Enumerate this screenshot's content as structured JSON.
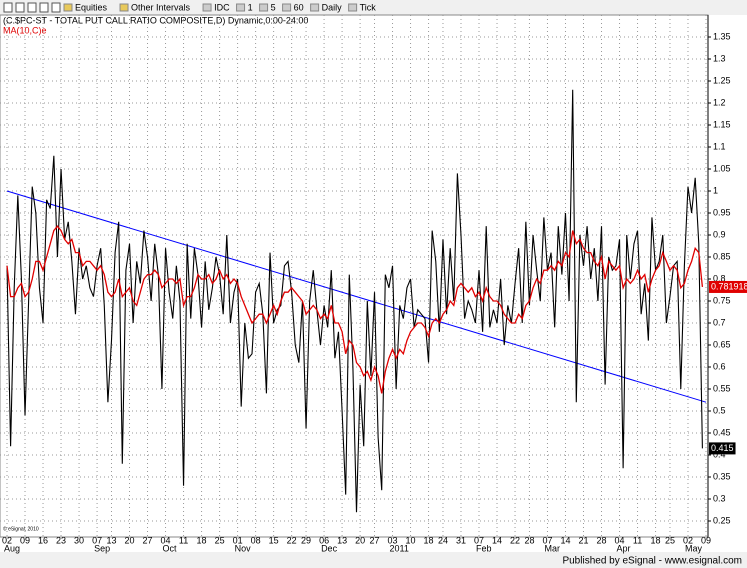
{
  "chart_data": {
    "type": "line",
    "toolbar": [
      "Equities",
      "Other Intervals",
      "IDC",
      "1",
      "5",
      "60",
      "Daily",
      "Tick"
    ],
    "watermark": "© eSignal, 2010",
    "footer": "Published by eSignal - www.esignal.com",
    "categories": [
      "02",
      null,
      null,
      null,
      null,
      "09",
      null,
      null,
      null,
      null,
      "16",
      null,
      null,
      null,
      null,
      "23",
      null,
      null,
      null,
      null,
      "30",
      null,
      null,
      null,
      null,
      "07",
      null,
      null,
      null,
      "13",
      null,
      null,
      null,
      null,
      "20",
      null,
      null,
      null,
      null,
      "27",
      null,
      null,
      null,
      null,
      "04",
      null,
      null,
      null,
      null,
      "11",
      null,
      null,
      null,
      null,
      "18",
      null,
      null,
      null,
      null,
      "25",
      null,
      null,
      null,
      null,
      "01",
      null,
      null,
      null,
      null,
      "08",
      null,
      null,
      null,
      null,
      "15",
      null,
      null,
      null,
      null,
      "22",
      null,
      null,
      null,
      "29",
      null,
      null,
      null,
      null,
      "06",
      null,
      null,
      null,
      null,
      "13",
      null,
      null,
      null,
      null,
      "20",
      null,
      null,
      null,
      "27",
      null,
      null,
      null,
      null,
      "03",
      null,
      null,
      null,
      null,
      "10",
      null,
      null,
      null,
      null,
      "18",
      null,
      null,
      null,
      "24",
      null,
      null,
      null,
      null,
      "31",
      null,
      null,
      null,
      null,
      "07",
      null,
      null,
      null,
      null,
      "14",
      null,
      null,
      null,
      null,
      "22",
      null,
      null,
      null,
      "28",
      null,
      null,
      null,
      null,
      "07",
      null,
      null,
      null,
      null,
      "14",
      null,
      null,
      null,
      null,
      "21",
      null,
      null,
      null,
      null,
      "28",
      null,
      null,
      null,
      null,
      "04",
      null,
      null,
      null,
      null,
      "11",
      null,
      null,
      null,
      null,
      "18",
      null,
      null,
      null,
      "25",
      null,
      null,
      null,
      null,
      "02",
      null,
      null,
      null,
      null,
      "09"
    ],
    "months": [
      "Aug",
      null,
      null,
      null,
      null,
      null,
      null,
      null,
      null,
      null,
      null,
      null,
      null,
      null,
      null,
      null,
      null,
      null,
      null,
      null,
      null,
      null,
      null,
      null,
      null,
      "Sep",
      null,
      null,
      null,
      null,
      null,
      null,
      null,
      null,
      null,
      null,
      null,
      null,
      null,
      null,
      null,
      null,
      null,
      null,
      "Oct",
      null,
      null,
      null,
      null,
      null,
      null,
      null,
      null,
      null,
      null,
      null,
      null,
      null,
      null,
      null,
      null,
      null,
      null,
      null,
      "Nov",
      null,
      null,
      null,
      null,
      null,
      null,
      null,
      null,
      null,
      null,
      null,
      null,
      null,
      null,
      null,
      null,
      null,
      null,
      null,
      null,
      null,
      null,
      null,
      "Dec",
      null,
      null,
      null,
      null,
      null,
      null,
      null,
      null,
      null,
      null,
      null,
      null,
      null,
      null,
      null,
      null,
      null,
      null,
      "2011",
      null,
      null,
      null,
      null,
      null,
      null,
      null,
      null,
      null,
      null,
      null,
      null,
      null,
      null,
      null,
      null,
      null,
      null,
      null,
      null,
      null,
      null,
      null,
      "Feb",
      null,
      null,
      null,
      null,
      null,
      null,
      null,
      null,
      null,
      null,
      null,
      null,
      null,
      null,
      null,
      null,
      null,
      null,
      "Mar",
      null,
      null,
      null,
      null,
      null,
      null,
      null,
      null,
      null,
      null,
      null,
      null,
      null,
      null,
      null,
      null,
      null,
      null,
      null,
      "Apr",
      null,
      null,
      null,
      null,
      null,
      null,
      null,
      null,
      null,
      null,
      null,
      null,
      null,
      null,
      null,
      null,
      null,
      null,
      "May",
      null,
      null,
      null,
      null,
      null
    ],
    "series": [
      {
        "name": "(C.$PC-ST - TOTAL PUT CALL RATIO COMPOSITE,D) Dynamic,0:00-24:00",
        "color": "#000000",
        "values": [
          0.83,
          0.42,
          0.78,
          0.99,
          0.8,
          0.49,
          0.75,
          1.01,
          0.95,
          0.78,
          0.7,
          0.98,
          0.96,
          1.08,
          0.85,
          1.05,
          0.89,
          0.93,
          0.84,
          0.72,
          0.87,
          0.8,
          0.83,
          0.78,
          0.76,
          0.83,
          0.87,
          0.74,
          0.52,
          0.66,
          0.86,
          0.93,
          0.38,
          0.82,
          0.88,
          0.7,
          0.84,
          0.79,
          0.91,
          0.85,
          0.75,
          0.88,
          0.81,
          0.55,
          0.87,
          0.77,
          0.71,
          0.83,
          0.75,
          0.33,
          0.88,
          0.71,
          0.87,
          0.81,
          0.69,
          0.84,
          0.73,
          0.78,
          0.85,
          0.81,
          0.72,
          0.9,
          0.7,
          0.77,
          0.8,
          0.51,
          0.7,
          0.62,
          0.63,
          0.77,
          0.79,
          0.72,
          0.54,
          0.86,
          0.7,
          0.73,
          0.74,
          0.83,
          0.84,
          0.77,
          0.65,
          0.61,
          0.75,
          0.46,
          0.75,
          0.82,
          0.73,
          0.65,
          0.74,
          0.69,
          0.82,
          0.62,
          0.68,
          0.5,
          0.31,
          0.81,
          0.6,
          0.27,
          0.56,
          0.42,
          0.75,
          0.58,
          0.77,
          0.44,
          0.32,
          0.81,
          0.78,
          0.83,
          0.55,
          0.74,
          0.71,
          0.78,
          0.8,
          0.69,
          0.73,
          0.72,
          0.71,
          0.61,
          0.91,
          0.84,
          0.68,
          0.89,
          0.72,
          0.87,
          0.75,
          1.04,
          0.9,
          0.71,
          0.75,
          0.73,
          0.7,
          0.82,
          0.68,
          0.92,
          0.69,
          0.73,
          0.7,
          0.8,
          0.65,
          0.74,
          0.7,
          0.79,
          0.87,
          0.7,
          0.93,
          0.74,
          0.9,
          0.82,
          0.75,
          0.94,
          0.82,
          0.86,
          0.69,
          0.92,
          0.81,
          0.95,
          0.75,
          1.23,
          0.52,
          0.9,
          0.83,
          0.92,
          0.8,
          0.87,
          0.75,
          0.92,
          0.56,
          0.85,
          0.82,
          0.83,
          0.89,
          0.37,
          0.9,
          0.8,
          0.88,
          0.91,
          0.72,
          0.79,
          0.66,
          0.94,
          0.82,
          0.84,
          0.9,
          0.7,
          0.76,
          0.83,
          0.84,
          0.55,
          0.83,
          1.01,
          0.95,
          1.03,
          0.88,
          0.415,
          null
        ]
      },
      {
        "name": "MA(10,C)e",
        "color": "#e00000",
        "values": [
          0.83,
          0.76,
          0.76,
          0.78,
          0.79,
          0.76,
          0.77,
          0.8,
          0.84,
          0.84,
          0.82,
          0.85,
          0.88,
          0.91,
          0.92,
          0.91,
          0.89,
          0.88,
          0.89,
          0.86,
          0.86,
          0.83,
          0.84,
          0.84,
          0.83,
          0.82,
          0.83,
          0.81,
          0.77,
          0.76,
          0.77,
          0.8,
          0.76,
          0.77,
          0.78,
          0.75,
          0.74,
          0.77,
          0.8,
          0.81,
          0.81,
          0.82,
          0.81,
          0.78,
          0.79,
          0.8,
          0.8,
          0.79,
          0.8,
          0.74,
          0.76,
          0.76,
          0.78,
          0.81,
          0.8,
          0.8,
          0.81,
          0.79,
          0.8,
          0.82,
          0.8,
          0.81,
          0.79,
          0.8,
          0.79,
          0.76,
          0.74,
          0.72,
          0.7,
          0.71,
          0.72,
          0.72,
          0.7,
          0.72,
          0.74,
          0.72,
          0.75,
          0.77,
          0.77,
          0.78,
          0.77,
          0.76,
          0.75,
          0.72,
          0.73,
          0.74,
          0.73,
          0.71,
          0.72,
          0.71,
          0.74,
          0.7,
          0.7,
          0.68,
          0.63,
          0.66,
          0.65,
          0.61,
          0.6,
          0.58,
          0.59,
          0.57,
          0.6,
          0.58,
          0.54,
          0.59,
          0.62,
          0.64,
          0.62,
          0.64,
          0.63,
          0.66,
          0.68,
          0.69,
          0.7,
          0.7,
          0.69,
          0.67,
          0.7,
          0.71,
          0.7,
          0.72,
          0.73,
          0.75,
          0.74,
          0.78,
          0.79,
          0.78,
          0.77,
          0.78,
          0.76,
          0.77,
          0.75,
          0.78,
          0.76,
          0.75,
          0.75,
          0.74,
          0.72,
          0.71,
          0.7,
          0.7,
          0.72,
          0.71,
          0.74,
          0.75,
          0.78,
          0.8,
          0.79,
          0.82,
          0.82,
          0.83,
          0.82,
          0.84,
          0.83,
          0.86,
          0.85,
          0.91,
          0.88,
          0.89,
          0.87,
          0.86,
          0.86,
          0.84,
          0.83,
          0.85,
          0.8,
          0.84,
          0.83,
          0.82,
          0.83,
          0.78,
          0.8,
          0.79,
          0.8,
          0.82,
          0.8,
          0.81,
          0.77,
          0.8,
          0.82,
          0.83,
          0.86,
          0.84,
          0.82,
          0.83,
          0.82,
          0.78,
          0.79,
          0.82,
          0.84,
          0.87,
          0.86,
          0.781918,
          null
        ]
      }
    ],
    "trendline": {
      "color": "#0000ff",
      "start": 1.0,
      "end": 0.52
    },
    "ylim": [
      0.22,
      1.39
    ],
    "yticks": [
      0.25,
      0.3,
      0.35,
      0.4,
      0.45,
      0.5,
      0.55,
      0.6,
      0.65,
      0.7,
      0.75,
      0.8,
      0.85,
      0.9,
      0.95,
      1,
      1.05,
      1.1,
      1.15,
      1.2,
      1.25,
      1.3,
      1.35
    ],
    "grid": true
  }
}
